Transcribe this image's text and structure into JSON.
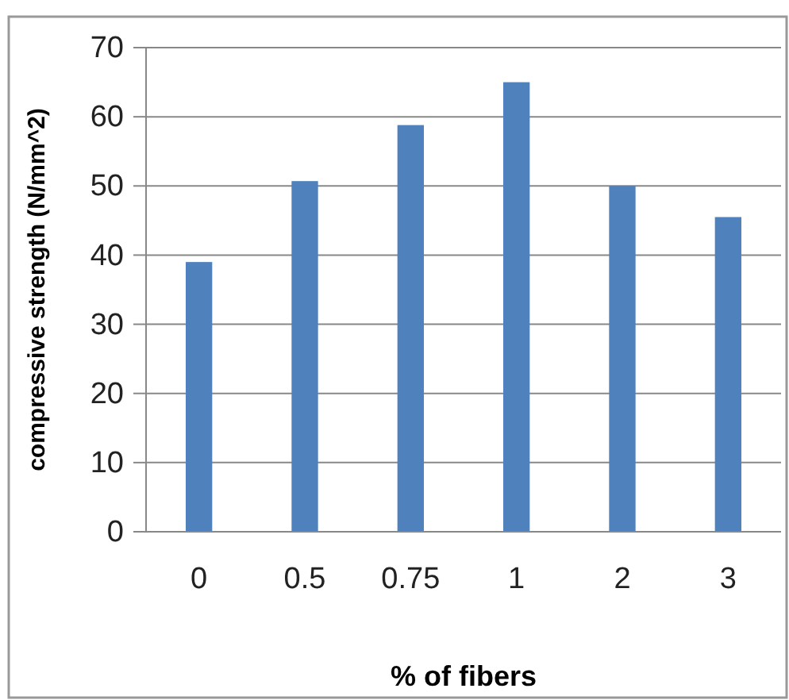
{
  "chart_data": {
    "type": "bar",
    "xlabel": "% of fibers",
    "ylabel": "compressive strength (N/mm^2)",
    "categories": [
      "0",
      "0.5",
      "0.75",
      "1",
      "2",
      "3"
    ],
    "values": [
      39,
      50.7,
      58.8,
      65,
      50,
      45.5
    ],
    "color": "#4f81bd",
    "ylim": [
      0,
      70
    ],
    "yticks": [
      0,
      10,
      20,
      30,
      40,
      50,
      60,
      70
    ],
    "grid": "y"
  }
}
